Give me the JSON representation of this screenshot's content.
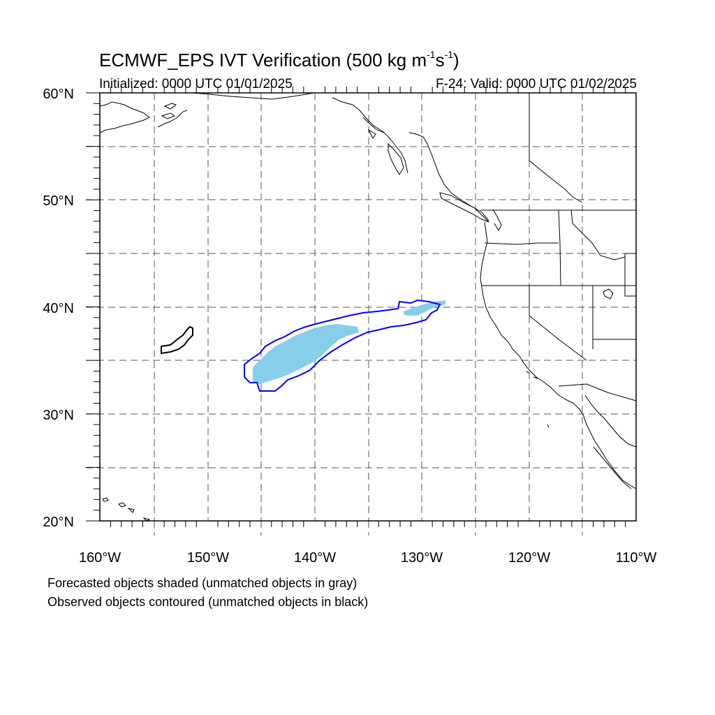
{
  "title": {
    "main": "ECMWF_EPS IVT Verification (500 kg m",
    "sup1": "-1",
    "mid": "s",
    "sup2": "-1",
    "end": ")"
  },
  "initialized": "Initialized: 0000 UTC 01/01/2025",
  "valid": "F-24: Valid: 0000 UTC 01/02/2025",
  "axes": {
    "lon_labels": [
      "160°W",
      "150°W",
      "140°W",
      "130°W",
      "120°W",
      "110°W"
    ],
    "lat_labels": [
      "60°N",
      "50°N",
      "40°N",
      "30°N",
      "20°N"
    ],
    "lon_range": [
      -160,
      -110
    ],
    "lat_range": [
      20,
      60
    ],
    "grid": "dashed every 5 degrees"
  },
  "colors": {
    "forecast_matched": "#87ceeb",
    "observed_matched": "#0000ff",
    "observed_unmatched": "#000000",
    "coastline": "#000000",
    "grid": "#555555"
  },
  "notes": [
    "Forecasted objects shaded (unmatched objects in gray)",
    "Observed objects contoured (unmatched objects in black)"
  ]
}
